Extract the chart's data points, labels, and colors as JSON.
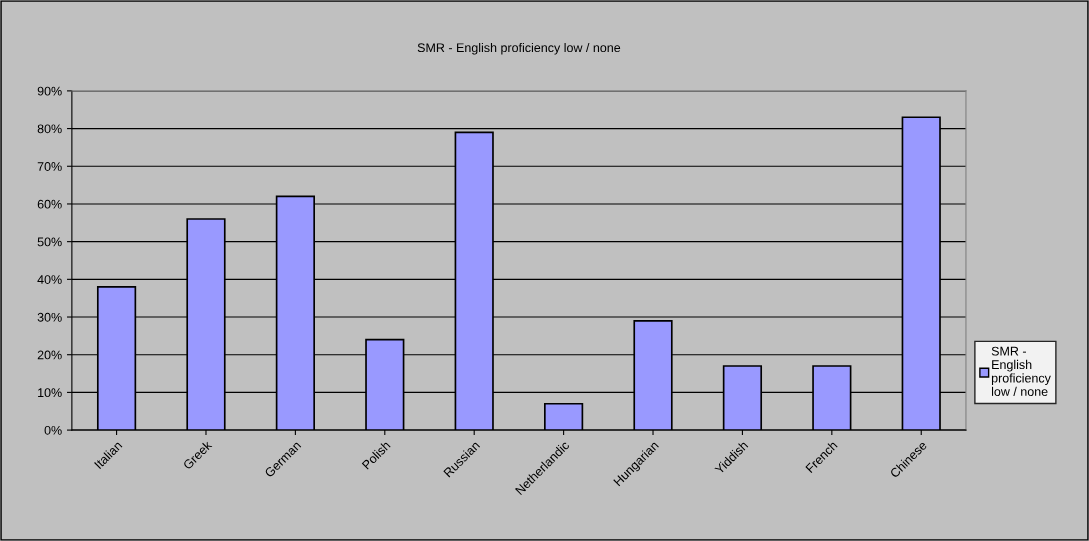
{
  "chart_data": {
    "type": "bar",
    "title": "SMR - English proficiency low / none",
    "categories": [
      "Italian",
      "Greek",
      "German",
      "Polish",
      "Russian",
      "Netherlandic",
      "Hungarian",
      "Yiddish",
      "French",
      "Chinese"
    ],
    "series": [
      {
        "name": "SMR - English proficiency low / none",
        "color": "#9999ff",
        "values": [
          38,
          56,
          62,
          24,
          79,
          7,
          29,
          17,
          17,
          83
        ]
      }
    ],
    "ylim": [
      0,
      90
    ],
    "yticks": [
      {
        "value": 0,
        "label": "0%"
      },
      {
        "value": 10,
        "label": "10%"
      },
      {
        "value": 20,
        "label": "20%"
      },
      {
        "value": 30,
        "label": "30%"
      },
      {
        "value": 40,
        "label": "40%"
      },
      {
        "value": 50,
        "label": "50%"
      },
      {
        "value": 60,
        "label": "60%"
      },
      {
        "value": 70,
        "label": "70%"
      },
      {
        "value": 80,
        "label": "80%"
      },
      {
        "value": 90,
        "label": "90%"
      }
    ],
    "grid": "y",
    "legend": "right"
  }
}
